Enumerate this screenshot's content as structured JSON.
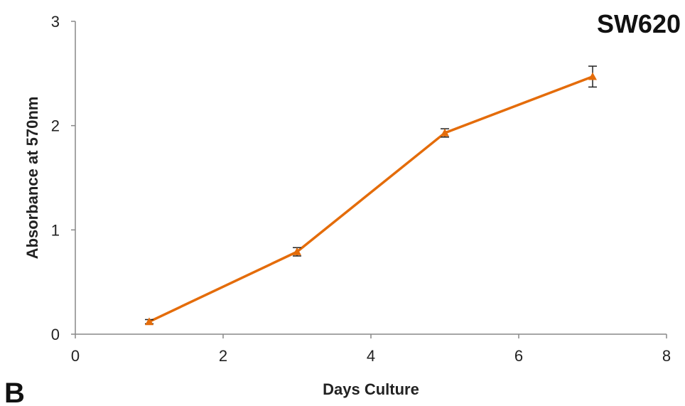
{
  "panel_label": "B",
  "chart_data": {
    "type": "line",
    "title": "SW620",
    "xlabel": "Days Culture",
    "ylabel": "Absorbance at 570nm",
    "xlim": [
      0,
      8
    ],
    "ylim": [
      0,
      3
    ],
    "xticks": [
      0,
      2,
      4,
      6,
      8
    ],
    "yticks": [
      0,
      1,
      2,
      3
    ],
    "grid": false,
    "series": [
      {
        "x": [
          1,
          3,
          5,
          7
        ],
        "y": [
          0.12,
          0.79,
          1.93,
          2.47
        ],
        "error": [
          0.02,
          0.04,
          0.04,
          0.1
        ],
        "color": "#e46c0a",
        "marker": "triangle"
      }
    ]
  }
}
